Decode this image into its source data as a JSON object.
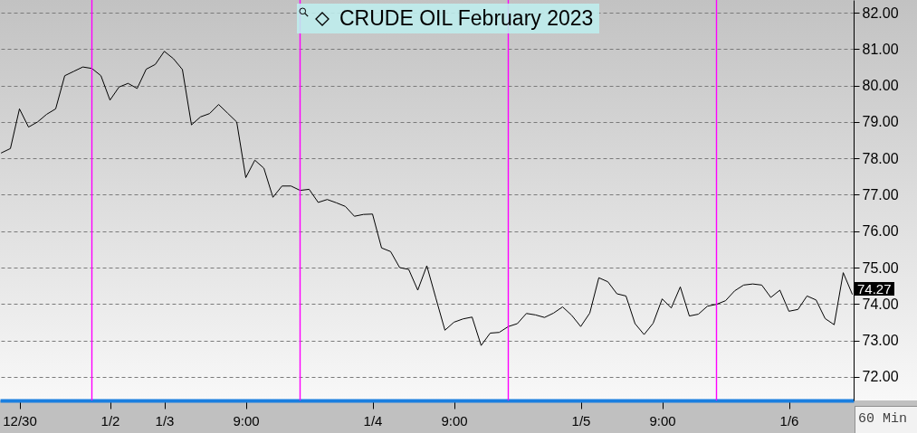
{
  "chart_data": {
    "type": "line",
    "title": "CRUDE OIL February 2023",
    "categories": [
      null,
      null,
      "12/30",
      null,
      null,
      null,
      null,
      null,
      null,
      null,
      null,
      null,
      "1/2",
      null,
      null,
      null,
      null,
      null,
      "1/3",
      null,
      null,
      null,
      null,
      null,
      null,
      null,
      null,
      "9:00",
      null,
      null,
      null,
      null,
      null,
      null,
      null,
      null,
      null,
      null,
      null,
      null,
      null,
      "1/4",
      null,
      null,
      null,
      null,
      null,
      null,
      null,
      null,
      "9:00",
      null,
      null,
      null,
      null,
      null,
      null,
      null,
      null,
      null,
      null,
      null,
      null,
      null,
      "1/5",
      null,
      null,
      null,
      null,
      null,
      null,
      null,
      null,
      "9:00",
      null,
      null,
      null,
      null,
      null,
      null,
      null,
      null,
      null,
      null,
      null,
      null,
      null,
      "1/6",
      null,
      null,
      null,
      null,
      null,
      null,
      null
    ],
    "values": [
      78.15,
      78.27,
      79.36,
      78.86,
      79.0,
      79.21,
      79.36,
      80.27,
      80.39,
      80.51,
      80.47,
      80.27,
      79.6,
      79.96,
      80.06,
      79.92,
      80.45,
      80.58,
      80.94,
      80.74,
      80.44,
      78.92,
      79.14,
      79.23,
      79.48,
      79.24,
      79.0,
      77.47,
      77.95,
      77.73,
      76.93,
      77.24,
      77.24,
      77.12,
      77.15,
      76.79,
      76.87,
      76.78,
      76.68,
      76.41,
      76.46,
      76.47,
      75.54,
      75.44,
      75.0,
      74.95,
      74.38,
      75.05,
      74.16,
      73.28,
      73.5,
      73.59,
      73.64,
      72.86,
      73.2,
      73.22,
      73.38,
      73.46,
      73.74,
      73.7,
      73.63,
      73.75,
      73.92,
      73.69,
      73.38,
      73.75,
      74.72,
      74.61,
      74.28,
      74.22,
      73.46,
      73.16,
      73.47,
      74.14,
      73.89,
      74.47,
      73.67,
      73.72,
      73.94,
      73.99,
      74.09,
      74.36,
      74.52,
      74.55,
      74.52,
      74.18,
      74.38,
      73.8,
      73.85,
      74.22,
      74.11,
      73.6,
      73.43,
      74.86,
      74.27
    ],
    "color": "#000000",
    "ylim": [
      71.35,
      82.35
    ],
    "yticks": [
      {
        "value": 72,
        "label": "72.00"
      },
      {
        "value": 73,
        "label": "73.00"
      },
      {
        "value": 74,
        "label": "74.00"
      },
      {
        "value": 75,
        "label": "75.00"
      },
      {
        "value": 76,
        "label": "76.00"
      },
      {
        "value": 77,
        "label": "77.00"
      },
      {
        "value": 78,
        "label": "78.00"
      },
      {
        "value": 79,
        "label": "79.00"
      },
      {
        "value": 80,
        "label": "80.00"
      },
      {
        "value": 81,
        "label": "81.00"
      },
      {
        "value": 82,
        "label": "82.00"
      }
    ],
    "grid": true,
    "annotations": [
      "60 Min",
      "74.27"
    ]
  }
}
